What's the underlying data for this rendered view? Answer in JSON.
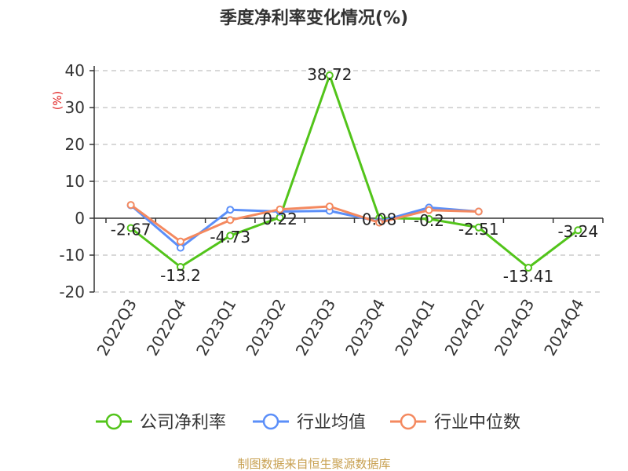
{
  "chart_data": {
    "type": "line",
    "title": "季度净利率变化情况(%)",
    "ylabel": "(%)",
    "ylim": [
      -20,
      40
    ],
    "yticks": [
      -20,
      -10,
      0,
      10,
      20,
      30,
      40
    ],
    "grid": true,
    "legend_position": "bottom",
    "categories": [
      "2022Q3",
      "2022Q4",
      "2023Q1",
      "2023Q2",
      "2023Q3",
      "2023Q4",
      "2024Q1",
      "2024Q2",
      "2024Q3",
      "2024Q4"
    ],
    "series": [
      {
        "name": "公司净利率",
        "color": "#52c41a",
        "values": [
          -2.67,
          -13.2,
          -4.73,
          0.22,
          38.72,
          0.08,
          -0.2,
          -2.51,
          -13.41,
          -3.24
        ],
        "labels": [
          "-2.67",
          "-13.2",
          "-4.73",
          "0.22",
          "38.72",
          "0.08",
          "-0.2",
          "-2.51",
          "-13.41",
          "-3.24"
        ]
      },
      {
        "name": "行业均值",
        "color": "#5b8ff9",
        "values": [
          3.5,
          -8.0,
          2.3,
          1.8,
          2.0,
          -0.9,
          2.9,
          1.8,
          null,
          null
        ]
      },
      {
        "name": "行业中位数",
        "color": "#f4895f",
        "values": [
          3.6,
          -6.3,
          -0.5,
          2.4,
          3.2,
          -1.2,
          2.2,
          1.8,
          null,
          null
        ]
      }
    ]
  },
  "footer": {
    "source": "制图数据来自恒生聚源数据库"
  }
}
